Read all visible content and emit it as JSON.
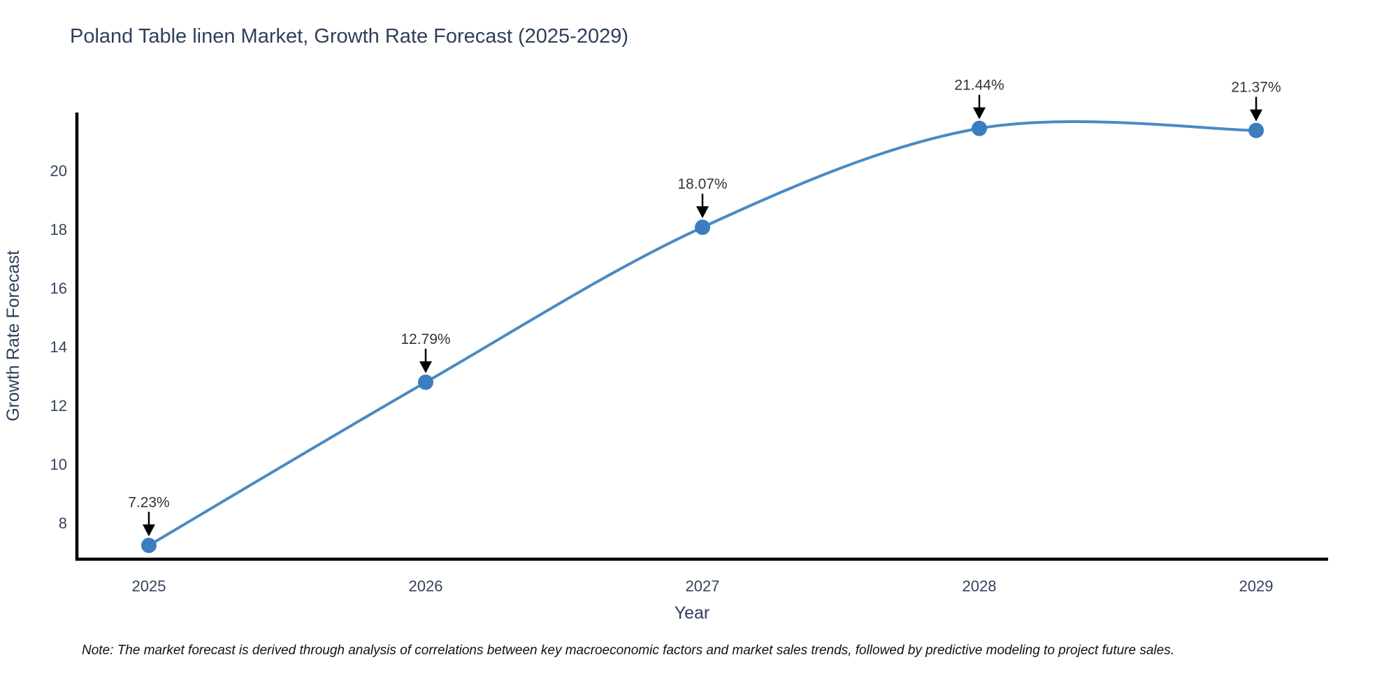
{
  "title": "Poland Table linen Market, Growth Rate Forecast (2025-2029)",
  "note": "Note: The market forecast is derived through analysis of correlations between key macroeconomic factors and market sales trends, followed by predictive modeling to project future sales.",
  "chart_data": {
    "type": "line",
    "title": "Poland Table linen Market, Growth Rate Forecast (2025-2029)",
    "xlabel": "Year",
    "ylabel": "Growth Rate Forecast",
    "x": [
      2025,
      2026,
      2027,
      2028,
      2029
    ],
    "series": [
      {
        "name": "Growth Rate Forecast",
        "values": [
          7.23,
          12.79,
          18.07,
          21.44,
          21.37
        ]
      }
    ],
    "point_labels": [
      "7.23%",
      "12.79%",
      "18.07%",
      "21.44%",
      "21.37%"
    ],
    "xticks": [
      "2025",
      "2026",
      "2027",
      "2028",
      "2029"
    ],
    "yticks": [
      8,
      10,
      12,
      14,
      16,
      18,
      20
    ],
    "xlim": [
      2024.74,
      2029.26
    ],
    "ylim": [
      6.76,
      21.98
    ],
    "line_shape": "spline",
    "grid": false,
    "legend_position": "none",
    "colors": {
      "line": "#4a8ac4",
      "marker": "#3a7ebf",
      "axis": "#000000",
      "arrow": "#000000",
      "tick_text": "#36435c",
      "title_text": "#2f3f5c",
      "annotation_text": "#333333"
    }
  }
}
